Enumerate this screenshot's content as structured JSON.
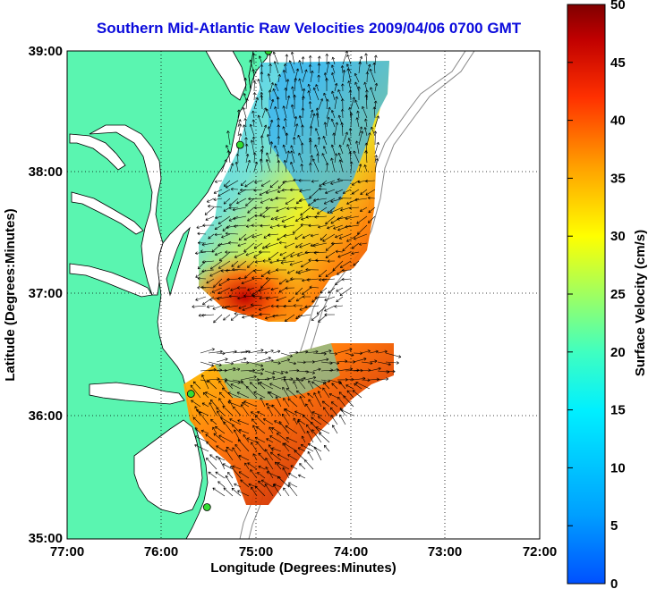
{
  "title": "Southern Mid-Atlantic Raw Velocities 2009/04/06 0700 GMT",
  "map": {
    "xlabel": "Longitude (Degrees:Minutes)",
    "ylabel": "Latitude (Degrees:Minutes)",
    "x_ticks": [
      "77:00",
      "76:00",
      "75:00",
      "74:00",
      "73:00",
      "72:00"
    ],
    "y_ticks": [
      "39:00",
      "38:00",
      "37:00",
      "36:00",
      "35:00"
    ],
    "lon_range": [
      -77,
      -72
    ],
    "lat_range": [
      35,
      39
    ],
    "land_color": "#5af5b0",
    "grid": "dotted"
  },
  "colorbar": {
    "label": "Surface Velocity (cm/s)",
    "ticks": [
      "50",
      "45",
      "40",
      "35",
      "30",
      "25",
      "20",
      "15",
      "10",
      "5",
      "0"
    ],
    "range": [
      0,
      50
    ],
    "colormap": "jet"
  },
  "stations": {
    "color": "#33dd33",
    "points": [
      {
        "lon": -74.87,
        "lat": 39.0
      },
      {
        "lon": -75.17,
        "lat": 38.23
      },
      {
        "lon": -75.69,
        "lat": 36.19
      },
      {
        "lon": -75.52,
        "lat": 35.26
      }
    ]
  }
}
